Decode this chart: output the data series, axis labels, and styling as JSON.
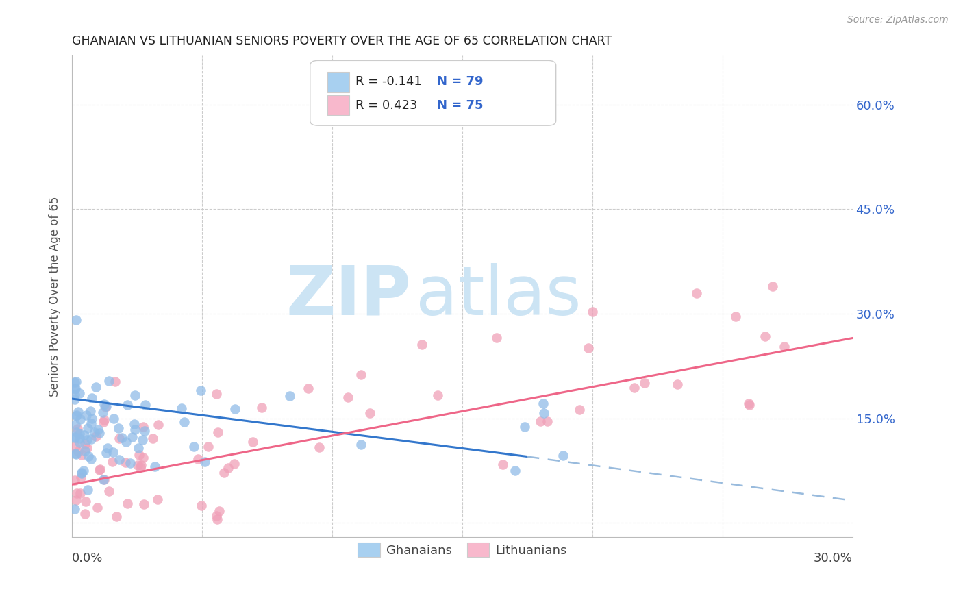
{
  "title": "GHANAIAN VS LITHUANIAN SENIORS POVERTY OVER THE AGE OF 65 CORRELATION CHART",
  "source": "Source: ZipAtlas.com",
  "ylabel": "Seniors Poverty Over the Age of 65",
  "xlim": [
    0.0,
    0.3
  ],
  "ylim": [
    -0.02,
    0.67
  ],
  "ytick_vals": [
    0.0,
    0.15,
    0.3,
    0.45,
    0.6
  ],
  "ytick_labels": [
    "",
    "15.0%",
    "30.0%",
    "45.0%",
    "60.0%"
  ],
  "ghanaian_color": "#90bce8",
  "lithuanian_color": "#f0a0b8",
  "trend_gh_color": "#3377cc",
  "trend_gh_dash_color": "#99bbdd",
  "trend_lt_color": "#ee6688",
  "watermark_zip": "ZIP",
  "watermark_atlas": "atlas",
  "watermark_color": "#cce4f4",
  "legend_r1": "R = -0.141",
  "legend_n1": "N = 79",
  "legend_r2": "R = 0.423",
  "legend_n2": "N = 75",
  "legend_color1": "#a8d0f0",
  "legend_color2": "#f8b8cc",
  "bottom_labels": [
    "Ghanaians",
    "Lithuanians"
  ],
  "rn_color": "#3366cc",
  "gh_trend_start_x": 0.0,
  "gh_trend_start_y": 0.178,
  "gh_trend_solid_end_x": 0.175,
  "gh_trend_solid_end_y": 0.095,
  "gh_trend_dash_end_x": 0.3,
  "gh_trend_dash_end_y": 0.032,
  "lt_trend_start_x": 0.0,
  "lt_trend_start_y": 0.055,
  "lt_trend_end_x": 0.3,
  "lt_trend_end_y": 0.265
}
